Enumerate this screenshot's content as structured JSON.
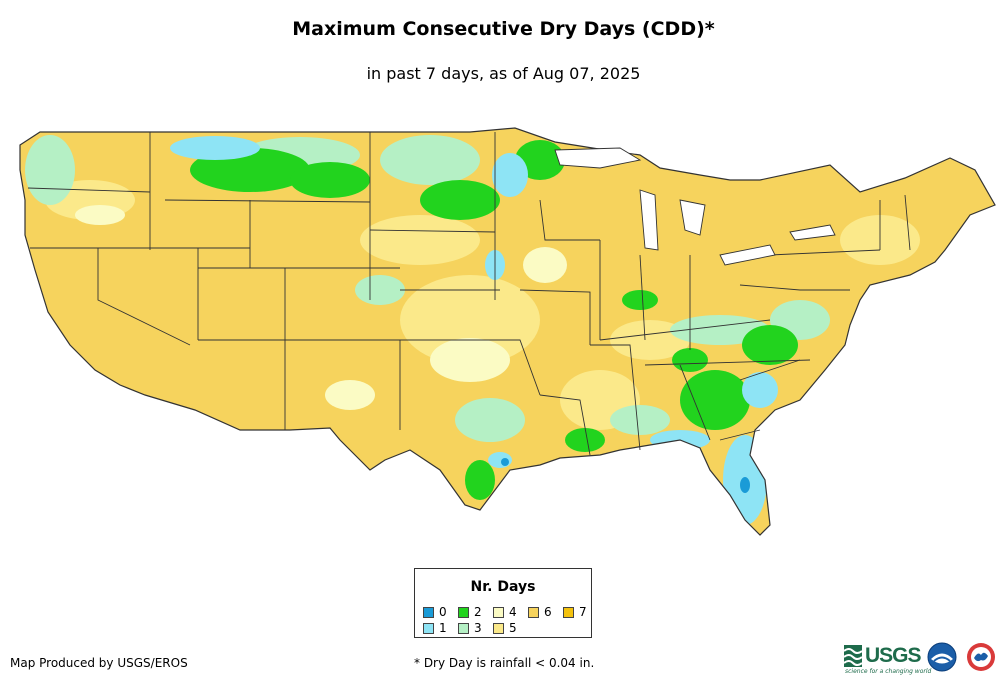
{
  "header": {
    "title": "Maximum Consecutive Dry Days (CDD)*",
    "subtitle": "in past 7 days, as of Aug 07, 2025"
  },
  "legend": {
    "title": "Nr. Days",
    "items": [
      {
        "label": "0",
        "color": "#1a9bd7"
      },
      {
        "label": "1",
        "color": "#8ee4f5"
      },
      {
        "label": "2",
        "color": "#22d31e"
      },
      {
        "label": "3",
        "color": "#b5f0c5"
      },
      {
        "label": "4",
        "color": "#fbfbc4"
      },
      {
        "label": "5",
        "color": "#fbe98a"
      },
      {
        "label": "6",
        "color": "#f6d35d"
      },
      {
        "label": "7",
        "color": "#f4c20d"
      }
    ]
  },
  "footer": {
    "credit": "Map Produced by USGS/EROS",
    "footnote": "* Dry Day is rainfall < 0.04 in."
  },
  "logos": {
    "usgs": "USGS",
    "usgs_tagline": "science for a changing world"
  },
  "map": {
    "region": "Contiguous United States",
    "dominant_value": "6",
    "colors": {
      "state_border": "#333333",
      "background": "#ffffff"
    }
  }
}
